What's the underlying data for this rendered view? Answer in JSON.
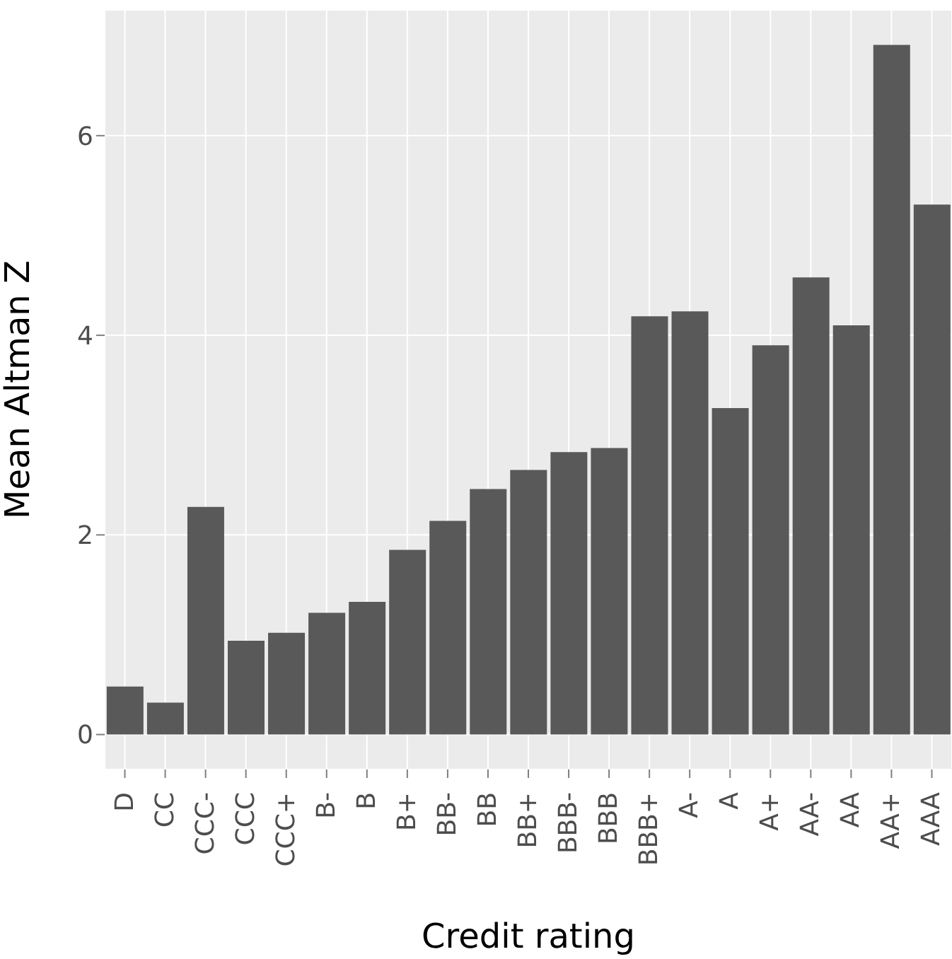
{
  "chart_data": {
    "type": "bar",
    "xlabel": "Credit rating",
    "ylabel": "Mean Altman Z",
    "categories": [
      "D",
      "CC",
      "CCC-",
      "CCC",
      "CCC+",
      "B-",
      "B",
      "B+",
      "BB-",
      "BB",
      "BB+",
      "BBB-",
      "BBB",
      "BBB+",
      "A-",
      "A",
      "A+",
      "AA-",
      "AA",
      "AA+",
      "AAA"
    ],
    "values": [
      0.48,
      0.32,
      2.28,
      0.94,
      1.02,
      1.22,
      1.33,
      1.85,
      2.14,
      2.46,
      2.65,
      2.83,
      2.87,
      4.19,
      4.24,
      3.27,
      3.9,
      4.58,
      4.1,
      6.91,
      5.31
    ],
    "color": "#595959",
    "ylim": [
      -0.35,
      7.26
    ],
    "yticks": [
      0,
      2,
      4,
      6
    ],
    "grid": true
  }
}
